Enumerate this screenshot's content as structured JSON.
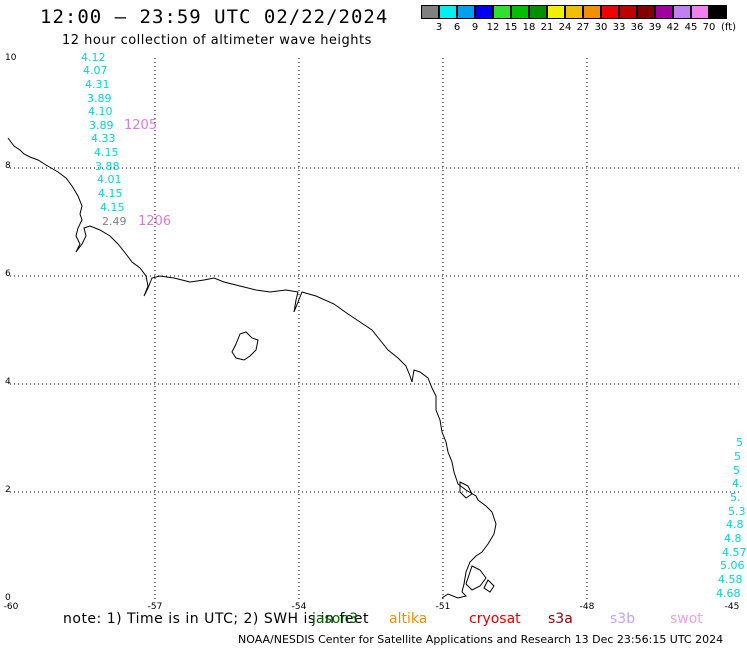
{
  "title": "12:00 – 23:59 UTC 02/22/2024",
  "subtitle": "12 hour collection of altimeter wave heights",
  "scale": {
    "colors": [
      "#808080",
      "#00f0f0",
      "#00a0f0",
      "#0000f0",
      "#30e030",
      "#00c000",
      "#009000",
      "#f0f000",
      "#f0c000",
      "#f09000",
      "#f00000",
      "#c00000",
      "#800000",
      "#a000a0",
      "#c080f0",
      "#f080f0",
      "#000000"
    ],
    "labels": [
      "3",
      "6",
      "9",
      "12",
      "15",
      "18",
      "21",
      "24",
      "27",
      "30",
      "33",
      "36",
      "39",
      "42",
      "45",
      "70"
    ],
    "unit": "(ft)"
  },
  "axes": {
    "y_labels": [
      "10",
      "8",
      "6",
      "4",
      "2",
      "0"
    ],
    "x_labels": [
      "-60",
      "-57",
      "-54",
      "-51",
      "-48",
      "-45"
    ]
  },
  "track_values": [
    {
      "v": "4.12",
      "c": "#00d8d8"
    },
    {
      "v": "4.07",
      "c": "#00d8d8"
    },
    {
      "v": "4.31",
      "c": "#00d8d8"
    },
    {
      "v": "3.89",
      "c": "#00d8d8"
    },
    {
      "v": "4.10",
      "c": "#00d8d8"
    },
    {
      "v": "3.89",
      "c": "#00d8d8"
    },
    {
      "v": "4.33",
      "c": "#00d8d8"
    },
    {
      "v": "4.15",
      "c": "#00d8d8"
    },
    {
      "v": "3.88",
      "c": "#00d8d8"
    },
    {
      "v": "4.01",
      "c": "#00d8d8"
    },
    {
      "v": "4.15",
      "c": "#00d8d8"
    },
    {
      "v": "4.15",
      "c": "#00d8d8"
    },
    {
      "v": "2.49",
      "c": "#808080"
    }
  ],
  "pass_labels": [
    "1205",
    "1206"
  ],
  "right_values": [
    "5",
    "5",
    "5",
    "4.",
    "5.",
    "5.3",
    "4.8",
    "4.8",
    "4.57",
    "5.06",
    "4.58",
    "4.68"
  ],
  "legend": {
    "note": "note: 1) Time is in UTC; 2) SWH is in feet",
    "sats": [
      {
        "name": "jason3",
        "color": "#006400"
      },
      {
        "name": "altika",
        "color": "#f09000"
      },
      {
        "name": "cryosat",
        "color": "#e00000"
      },
      {
        "name": "s3a",
        "color": "#900000"
      },
      {
        "name": "s3b",
        "color": "#c8a0f0"
      },
      {
        "name": "swot",
        "color": "#f0a0e8"
      }
    ]
  },
  "footer": "NOAA/NESDIS Center for Satellite Applications and Research   13 Dec 23:56:15 UTC 2024"
}
